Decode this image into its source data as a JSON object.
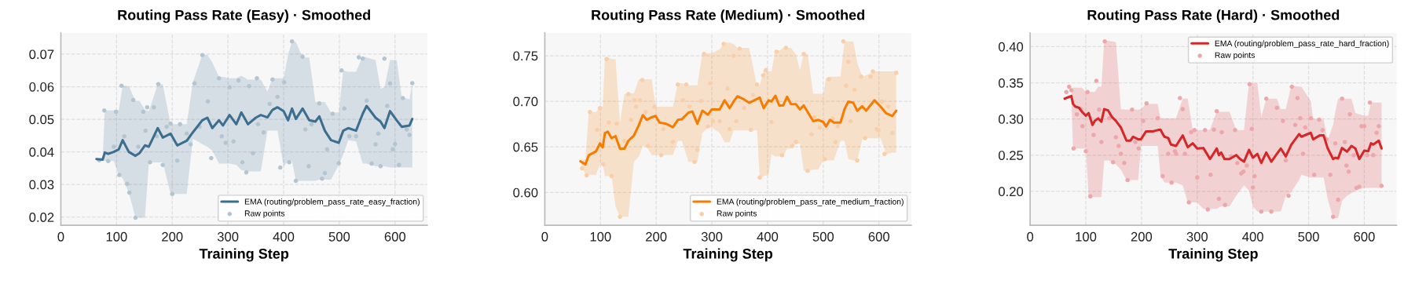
{
  "chart_data": [
    {
      "type": "line",
      "title": "Routing Pass Rate (Easy) · Smoothed",
      "xlabel": "Training Step",
      "xlim": [
        0,
        658
      ],
      "xticks": [
        0,
        100,
        200,
        300,
        400,
        500,
        600
      ],
      "ylim": [
        0.0175,
        0.0765
      ],
      "yticks": [
        0.02,
        0.03,
        0.04,
        0.05,
        0.06,
        0.07
      ],
      "grid": true,
      "legend": "bottom right",
      "series": [
        {
          "name": "EMA (routing/problem_pass_rate_easy_fraction)",
          "color": "#3b6e8f",
          "line_style": "solid",
          "x": [
            64,
            75,
            79,
            85,
            95,
            104,
            111,
            122,
            134,
            141,
            151,
            158,
            174,
            183,
            197,
            209,
            226,
            237,
            254,
            263,
            272,
            284,
            291,
            303,
            315,
            324,
            336,
            350,
            359,
            371,
            380,
            389,
            400,
            408,
            415,
            422,
            434,
            446,
            457,
            464,
            474,
            485,
            499,
            507,
            516,
            530,
            542,
            549,
            565,
            574,
            581,
            591,
            603,
            612,
            626,
            631
          ],
          "values": [
            0.0378,
            0.0376,
            0.0398,
            0.0394,
            0.04,
            0.0408,
            0.0436,
            0.04,
            0.0388,
            0.0396,
            0.042,
            0.0416,
            0.0473,
            0.0444,
            0.0456,
            0.042,
            0.0434,
            0.046,
            0.0497,
            0.0505,
            0.0473,
            0.0497,
            0.0481,
            0.0513,
            0.0485,
            0.0521,
            0.0485,
            0.0505,
            0.0513,
            0.0506,
            0.0529,
            0.0537,
            0.0525,
            0.0497,
            0.0533,
            0.0501,
            0.0533,
            0.0497,
            0.0493,
            0.0509,
            0.0465,
            0.0436,
            0.0428,
            0.0465,
            0.0473,
            0.0465,
            0.0517,
            0.0541,
            0.0505,
            0.0493,
            0.0473,
            0.0525,
            0.0497,
            0.0477,
            0.0481,
            0.0501
          ],
          "upper": [
            0.0378,
            0.0376,
            0.0527,
            0.0527,
            0.0527,
            0.0527,
            0.0603,
            0.0602,
            0.0557,
            0.0557,
            0.0529,
            0.0525,
            0.0607,
            0.0607,
            0.0485,
            0.0485,
            0.0485,
            0.0614,
            0.0698,
            0.0698,
            0.0674,
            0.063,
            0.063,
            0.0626,
            0.0626,
            0.0634,
            0.0622,
            0.0622,
            0.0622,
            0.0585,
            0.0626,
            0.0626,
            0.0626,
            0.0698,
            0.0739,
            0.0737,
            0.069,
            0.069,
            0.0553,
            0.0553,
            0.0553,
            0.0521,
            0.0521,
            0.065,
            0.0646,
            0.0646,
            0.0694,
            0.069,
            0.0682,
            0.0594,
            0.0598,
            0.0682,
            0.0682,
            0.0569,
            0.0561,
            0.0614
          ],
          "lower": [
            0.0378,
            0.0372,
            0.0372,
            0.0372,
            0.0372,
            0.0329,
            0.0319,
            0.0275,
            0.0198,
            0.0198,
            0.0198,
            0.0368,
            0.0368,
            0.0368,
            0.0271,
            0.0271,
            0.0271,
            0.044,
            0.0424,
            0.0416,
            0.0404,
            0.0364,
            0.0364,
            0.0364,
            0.036,
            0.0344,
            0.034,
            0.034,
            0.034,
            0.0465,
            0.0465,
            0.0465,
            0.0356,
            0.0372,
            0.0372,
            0.0311,
            0.0311,
            0.0311,
            0.0311,
            0.0315,
            0.0315,
            0.0315,
            0.036,
            0.0392,
            0.0436,
            0.0432,
            0.0364,
            0.0364,
            0.0356,
            0.0356,
            0.0356,
            0.0352,
            0.0352,
            0.0352,
            0.0352,
            0.0352
          ]
        },
        {
          "name": "Raw points",
          "type": "scatter",
          "color": "#b3c5d1",
          "marker": "circle",
          "x": [
            69,
            78,
            85,
            95,
            99,
            105,
            109,
            114,
            119,
            123,
            130,
            134,
            139,
            148,
            152,
            155,
            160,
            167,
            172,
            175,
            183,
            190,
            197,
            200,
            209,
            214,
            226,
            233,
            240,
            249,
            254,
            264,
            270,
            284,
            289,
            296,
            303,
            310,
            319,
            326,
            333,
            338,
            345,
            352,
            354,
            364,
            375,
            380,
            389,
            394,
            401,
            410,
            415,
            422,
            434,
            439,
            445,
            450,
            464,
            469,
            474,
            478,
            488,
            499,
            504,
            509,
            518,
            530,
            535,
            542,
            549,
            558,
            565,
            570,
            574,
            581,
            586,
            591,
            596,
            600,
            607,
            614,
            621,
            626,
            631
          ],
          "values": [
            0.0374,
            0.0527,
            0.0372,
            0.0416,
            0.0523,
            0.0329,
            0.0603,
            0.0448,
            0.0302,
            0.0275,
            0.0559,
            0.0198,
            0.0416,
            0.0523,
            0.0465,
            0.0537,
            0.0368,
            0.0537,
            0.0448,
            0.0608,
            0.036,
            0.0477,
            0.0487,
            0.0271,
            0.0373,
            0.0485,
            0.0456,
            0.0423,
            0.061,
            0.0477,
            0.0697,
            0.0555,
            0.0381,
            0.0626,
            0.0448,
            0.0428,
            0.0598,
            0.0432,
            0.0619,
            0.0368,
            0.0337,
            0.0602,
            0.0396,
            0.0626,
            0.0485,
            0.046,
            0.0547,
            0.0622,
            0.0569,
            0.0352,
            0.0614,
            0.0368,
            0.0739,
            0.0311,
            0.0692,
            0.0469,
            0.0356,
            0.0485,
            0.0549,
            0.0318,
            0.0335,
            0.0408,
            0.0517,
            0.0365,
            0.065,
            0.0533,
            0.0448,
            0.0448,
            0.069,
            0.0686,
            0.0557,
            0.0364,
            0.0423,
            0.0456,
            0.0356,
            0.0686,
            0.0541,
            0.061,
            0.0408,
            0.0424,
            0.036,
            0.0565,
            0.0469,
            0.0452,
            0.0611
          ]
        }
      ]
    },
    {
      "type": "line",
      "title": "Routing Pass Rate (Medium) · Smoothed",
      "xlabel": "Training Step",
      "xlim": [
        0,
        658
      ],
      "xticks": [
        0,
        100,
        200,
        300,
        400,
        500,
        600
      ],
      "ylim": [
        0.564,
        0.775
      ],
      "yticks": [
        {
          "value": 0.6,
          "label": "0.60"
        },
        {
          "value": 0.65,
          "label": "0.65"
        },
        {
          "value": 0.7,
          "label": "0.70"
        },
        {
          "value": 0.75,
          "label": "0.75"
        }
      ],
      "grid": true,
      "legend": "bottom right",
      "series": [
        {
          "name": "EMA (routing/problem_pass_rate_medium_fraction)",
          "color": "#f57c00",
          "line_style": "solid",
          "x": [
            64,
            73,
            79,
            85,
            92,
            99,
            104,
            108,
            113,
            120,
            127,
            135,
            143,
            150,
            160,
            169,
            176,
            183,
            192,
            199,
            206,
            218,
            230,
            239,
            246,
            258,
            265,
            274,
            283,
            293,
            300,
            314,
            323,
            332,
            339,
            346,
            356,
            367,
            381,
            386,
            393,
            402,
            407,
            414,
            421,
            428,
            435,
            442,
            451,
            458,
            465,
            472,
            482,
            491,
            500,
            505,
            512,
            519,
            531,
            538,
            545,
            554,
            561,
            570,
            577,
            592,
            603,
            613,
            624,
            631
          ],
          "values": [
            0.6342,
            0.6307,
            0.6408,
            0.6428,
            0.6451,
            0.6537,
            0.6494,
            0.6652,
            0.6667,
            0.6595,
            0.6618,
            0.648,
            0.648,
            0.6566,
            0.6624,
            0.6739,
            0.6848,
            0.6796,
            0.6825,
            0.6839,
            0.6767,
            0.6753,
            0.6716,
            0.6796,
            0.6802,
            0.6876,
            0.6888,
            0.6753,
            0.6897,
            0.6853,
            0.6911,
            0.6911,
            0.7011,
            0.6925,
            0.6997,
            0.7055,
            0.7026,
            0.6983,
            0.7026,
            0.704,
            0.6925,
            0.7011,
            0.6997,
            0.706,
            0.6954,
            0.6954,
            0.7049,
            0.6968,
            0.6968,
            0.6911,
            0.6954,
            0.6882,
            0.6782,
            0.6796,
            0.6773,
            0.6724,
            0.6796,
            0.6767,
            0.6767,
            0.6911,
            0.6997,
            0.6983,
            0.6897,
            0.6945,
            0.6897,
            0.7011,
            0.694,
            0.6868,
            0.6839,
            0.6897
          ],
          "upper": [
            0.6342,
            0.6365,
            0.6882,
            0.6882,
            0.6882,
            0.694,
            0.694,
            0.7486,
            0.7486,
            0.7463,
            0.7463,
            0.6767,
            0.7083,
            0.7083,
            0.7089,
            0.7241,
            0.7241,
            0.7241,
            0.7241,
            0.694,
            0.694,
            0.694,
            0.694,
            0.7198,
            0.7198,
            0.7175,
            0.7175,
            0.7175,
            0.7529,
            0.7529,
            0.7529,
            0.7572,
            0.7644,
            0.7644,
            0.7629,
            0.7586,
            0.7586,
            0.7586,
            0.717,
            0.717,
            0.7342,
            0.7328,
            0.7328,
            0.7557,
            0.7557,
            0.7586,
            0.7586,
            0.7586,
            0.7514,
            0.7342,
            0.752,
            0.752,
            0.7083,
            0.7083,
            0.7083,
            0.7256,
            0.727,
            0.727,
            0.727,
            0.7658,
            0.7658,
            0.7658,
            0.7428,
            0.727,
            0.7284,
            0.7328,
            0.7328,
            0.7328,
            0.7328,
            0.7328
          ],
          "lower": [
            0.6342,
            0.6193,
            0.6193,
            0.6193,
            0.6193,
            0.6307,
            0.6307,
            0.6178,
            0.6178,
            0.6178,
            0.5848,
            0.5733,
            0.5733,
            0.5733,
            0.6336,
            0.6394,
            0.6509,
            0.6509,
            0.6408,
            0.6408,
            0.6408,
            0.6408,
            0.6408,
            0.6566,
            0.6566,
            0.6336,
            0.6336,
            0.6336,
            0.6652,
            0.671,
            0.671,
            0.6652,
            0.6552,
            0.6552,
            0.6681,
            0.6681,
            0.6681,
            0.6681,
            0.6681,
            0.6164,
            0.6178,
            0.6193,
            0.6422,
            0.6394,
            0.6394,
            0.6394,
            0.648,
            0.648,
            0.6537,
            0.6537,
            0.6236,
            0.6236,
            0.625,
            0.625,
            0.6351,
            0.6351,
            0.6351,
            0.6351,
            0.6566,
            0.6566,
            0.6365,
            0.6351,
            0.6351,
            0.658,
            0.6595,
            0.6595,
            0.6595,
            0.6422,
            0.6437,
            0.6437
          ]
        },
        {
          "name": "Raw points",
          "type": "scatter",
          "color": "#f8cfa8",
          "marker": "circle",
          "x": [
            67,
            75,
            81,
            94,
            99,
            105,
            111,
            115,
            120,
            129,
            135,
            143,
            150,
            155,
            161,
            164,
            171,
            175,
            181,
            185,
            197,
            209,
            213,
            230,
            239,
            248,
            254,
            260,
            269,
            274,
            281,
            286,
            293,
            297,
            302,
            314,
            321,
            328,
            332,
            339,
            344,
            350,
            358,
            370,
            374,
            381,
            386,
            392,
            397,
            407,
            416,
            426,
            433,
            444,
            451,
            465,
            472,
            479,
            484,
            494,
            503,
            510,
            517,
            522,
            526,
            536,
            541,
            545,
            549,
            556,
            561,
            568,
            575,
            585,
            589,
            596,
            599,
            605,
            610,
            617,
            624,
            631
          ],
          "values": [
            0.6264,
            0.6187,
            0.6882,
            0.6687,
            0.6925,
            0.6307,
            0.7463,
            0.6767,
            0.6178,
            0.6753,
            0.5733,
            0.6566,
            0.7078,
            0.6796,
            0.7011,
            0.694,
            0.7011,
            0.7233,
            0.6882,
            0.6509,
            0.694,
            0.6408,
            0.6695,
            0.6552,
            0.7184,
            0.7011,
            0.7184,
            0.694,
            0.6336,
            0.6466,
            0.7003,
            0.752,
            0.6724,
            0.7198,
            0.6782,
            0.6782,
            0.7629,
            0.7141,
            0.6695,
            0.75,
            0.6782,
            0.7578,
            0.6925,
            0.6687,
            0.7069,
            0.7184,
            0.6164,
            0.7284,
            0.7342,
            0.6773,
            0.7543,
            0.6408,
            0.7586,
            0.6509,
            0.6552,
            0.752,
            0.6236,
            0.6638,
            0.6825,
            0.671,
            0.6365,
            0.7241,
            0.681,
            0.6552,
            0.6724,
            0.7658,
            0.717,
            0.7434,
            0.6782,
            0.7126,
            0.6351,
            0.727,
            0.6595,
            0.727,
            0.7328,
            0.6695,
            0.6681,
            0.6997,
            0.6422,
            0.694,
            0.6652,
            0.7313
          ]
        }
      ]
    },
    {
      "type": "line",
      "title": "Routing Pass Rate (Hard) · Smoothed",
      "xlabel": "Training Step",
      "xlim": [
        0,
        658
      ],
      "xticks": [
        0,
        100,
        200,
        300,
        400,
        500,
        600
      ],
      "ylim": [
        0.1532,
        0.4189
      ],
      "yticks": [
        {
          "value": 0.2,
          "label": "0.20"
        },
        0.25,
        {
          "value": 0.3,
          "label": "0.30"
        },
        0.35,
        {
          "value": 0.4,
          "label": "0.40"
        }
      ],
      "grid": true,
      "legend": "top right",
      "series": [
        {
          "name": "EMA (routing/problem_pass_rate_hard_fraction)",
          "color": "#d62728",
          "line_style": "solid",
          "x": [
            62,
            74,
            77,
            81,
            88,
            93,
            100,
            105,
            112,
            116,
            122,
            128,
            133,
            140,
            147,
            154,
            163,
            173,
            180,
            185,
            194,
            199,
            208,
            220,
            229,
            234,
            241,
            248,
            253,
            262,
            274,
            283,
            292,
            300,
            311,
            316,
            323,
            335,
            339,
            343,
            349,
            358,
            370,
            377,
            384,
            393,
            400,
            408,
            415,
            424,
            433,
            443,
            450,
            459,
            469,
            483,
            487,
            504,
            508,
            520,
            527,
            534,
            544,
            548,
            553,
            560,
            569,
            577,
            584,
            591,
            600,
            607,
            612,
            616,
            626,
            631
          ],
          "values": [
            0.3281,
            0.3318,
            0.3209,
            0.3172,
            0.3154,
            0.31,
            0.3045,
            0.3082,
            0.2918,
            0.2973,
            0.3009,
            0.2962,
            0.3136,
            0.3118,
            0.3027,
            0.2973,
            0.2882,
            0.2701,
            0.2701,
            0.2755,
            0.2719,
            0.2719,
            0.2828,
            0.2828,
            0.2846,
            0.2853,
            0.2755,
            0.2737,
            0.2646,
            0.2628,
            0.2773,
            0.261,
            0.2664,
            0.2592,
            0.2599,
            0.2537,
            0.2446,
            0.2592,
            0.2501,
            0.2537,
            0.2446,
            0.2446,
            0.2501,
            0.2446,
            0.241,
            0.2573,
            0.2465,
            0.2519,
            0.2392,
            0.2537,
            0.241,
            0.2519,
            0.2592,
            0.2483,
            0.2646,
            0.2791,
            0.2755,
            0.2809,
            0.2719,
            0.2773,
            0.2773,
            0.2599,
            0.2446,
            0.2465,
            0.2454,
            0.2599,
            0.2548,
            0.2628,
            0.2592,
            0.2446,
            0.2563,
            0.2555,
            0.2664,
            0.2646,
            0.2701,
            0.2592
          ],
          "upper": [
            0.3281,
            0.3336,
            0.3434,
            0.3434,
            0.3434,
            0.3434,
            0.3372,
            0.3372,
            0.3372,
            0.3372,
            0.3445,
            0.3445,
            0.408,
            0.408,
            0.4073,
            0.4062,
            0.3136,
            0.3129,
            0.3129,
            0.3129,
            0.3129,
            0.3136,
            0.3209,
            0.3209,
            0.3209,
            0.3009,
            0.3009,
            0.3009,
            0.3009,
            0.3009,
            0.3281,
            0.3281,
            0.2846,
            0.2846,
            0.2846,
            0.2846,
            0.2853,
            0.31,
            0.31,
            0.31,
            0.31,
            0.31,
            0.2846,
            0.2846,
            0.2846,
            0.3492,
            0.3492,
            0.3492,
            0.3027,
            0.3281,
            0.3281,
            0.3281,
            0.3136,
            0.3136,
            0.3463,
            0.3445,
            0.3445,
            0.3245,
            0.3009,
            0.2991,
            0.2991,
            0.2701,
            0.2918,
            0.31,
            0.3281,
            0.3281,
            0.3281,
            0.3281,
            0.3082,
            0.3064,
            0.3045,
            0.3045,
            0.3227,
            0.3227,
            0.3227,
            0.3227
          ],
          "lower": [
            0.3281,
            0.3299,
            0.2592,
            0.2592,
            0.2592,
            0.2592,
            0.2592,
            0.1938,
            0.192,
            0.192,
            0.192,
            0.192,
            0.2428,
            0.2428,
            0.241,
            0.2374,
            0.2301,
            0.2156,
            0.2156,
            0.2156,
            0.2156,
            0.2628,
            0.2628,
            0.2628,
            0.2628,
            0.2229,
            0.212,
            0.212,
            0.212,
            0.212,
            0.2083,
            0.1848,
            0.1848,
            0.1848,
            0.1757,
            0.1757,
            0.1757,
            0.1757,
            0.1775,
            0.1793,
            0.1793,
            0.1793,
            0.1938,
            0.2011,
            0.2083,
            0.2011,
            0.1793,
            0.172,
            0.172,
            0.172,
            0.172,
            0.172,
            0.172,
            0.1938,
            0.1993,
            0.2156,
            0.2229,
            0.2192,
            0.2192,
            0.2192,
            0.2192,
            0.1902,
            0.163,
            0.163,
            0.163,
            0.1866,
            0.1938,
            0.1975,
            0.2011,
            0.2029,
            0.2047,
            0.2047,
            0.2047,
            0.2047,
            0.2047,
            0.2047
          ]
        },
        {
          "name": "Raw points",
          "type": "scatter",
          "color": "#eda7ab",
          "marker": "circle",
          "x": [
            65,
            70,
            74,
            78,
            84,
            91,
            94,
            100,
            103,
            108,
            114,
            119,
            124,
            128,
            134,
            142,
            149,
            154,
            159,
            163,
            169,
            175,
            183,
            189,
            195,
            203,
            209,
            229,
            238,
            248,
            254,
            260,
            262,
            269,
            274,
            278,
            285,
            289,
            295,
            300,
            314,
            319,
            324,
            330,
            335,
            339,
            344,
            350,
            361,
            368,
            372,
            379,
            383,
            389,
            394,
            398,
            400,
            403,
            415,
            424,
            433,
            443,
            454,
            459,
            464,
            470,
            476,
            480,
            485,
            490,
            494,
            504,
            510,
            519,
            525,
            532,
            539,
            544,
            548,
            553,
            560,
            565,
            568,
            572,
            574,
            581,
            586,
            591,
            595,
            600,
            605,
            610,
            616,
            622,
            626,
            631
          ],
          "values": [
            0.3372,
            0.3445,
            0.3397,
            0.2592,
            0.3064,
            0.3136,
            0.29,
            0.2555,
            0.3372,
            0.1931,
            0.278,
            0.3528,
            0.3129,
            0.2682,
            0.4073,
            0.3009,
            0.2403,
            0.2748,
            0.2628,
            0.2519,
            0.2392,
            0.2156,
            0.3129,
            0.2682,
            0.2592,
            0.2973,
            0.3216,
            0.3009,
            0.221,
            0.2519,
            0.212,
            0.2555,
            0.2519,
            0.3289,
            0.3136,
            0.2519,
            0.1848,
            0.2817,
            0.2846,
            0.2192,
            0.2846,
            0.175,
            0.2229,
            0.2853,
            0.3107,
            0.1895,
            0.2817,
            0.1811,
            0.2483,
            0.2846,
            0.2392,
            0.2247,
            0.2272,
            0.2356,
            0.3481,
            0.2864,
            0.2054,
            0.221,
            0.172,
            0.3281,
            0.172,
            0.3154,
            0.2973,
            0.2428,
            0.1938,
            0.3445,
            0.2918,
            0.3289,
            0.3009,
            0.2519,
            0.2882,
            0.3009,
            0.2229,
            0.2991,
            0.2846,
            0.2719,
            0.2229,
            0.1648,
            0.2664,
            0.1884,
            0.3281,
            0.2682,
            0.2356,
            0.2272,
            0.3064,
            0.2501,
            0.2047,
            0.2065,
            0.29,
            0.29,
            0.2501,
            0.3227,
            0.2501,
            0.2809,
            0.29,
            0.2076
          ]
        }
      ]
    }
  ]
}
